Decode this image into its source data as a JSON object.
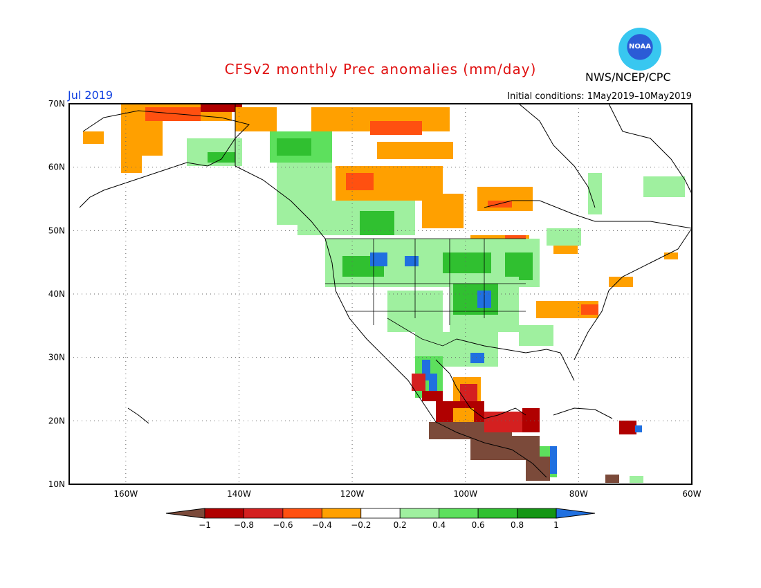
{
  "title": "CFSv2 monthly Prec anomalies (mm/day)",
  "month_label": "Jul 2019",
  "initial_conditions": "Initial conditions: 1May2019–10May2019",
  "agency": "NWS/NCEP/CPC",
  "logo_text": "NOAA",
  "map": {
    "lat_labels": [
      "70N",
      "60N",
      "50N",
      "40N",
      "30N",
      "20N",
      "10N"
    ],
    "lon_labels": [
      "160W",
      "140W",
      "120W",
      "100W",
      "80W",
      "60W"
    ],
    "lat_range": [
      10,
      70
    ],
    "lon_range": [
      -170,
      -60
    ]
  },
  "colorbar": {
    "tick_labels": [
      "−1",
      "−0.8",
      "−0.6",
      "−0.4",
      "−0.2",
      "0.2",
      "0.4",
      "0.6",
      "0.8",
      "1"
    ],
    "colors": [
      "#7b4a3a",
      "#b00000",
      "#d42020",
      "#ff5010",
      "#ffa000",
      "#ffffff",
      "#9ff09f",
      "#5de05d",
      "#30c030",
      "#149614",
      "#2070e0"
    ]
  }
}
